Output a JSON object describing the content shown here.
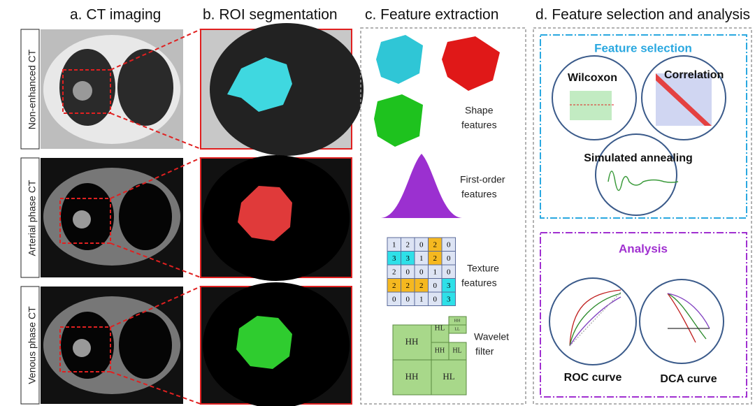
{
  "panels": [
    "a. CT imaging",
    "b. ROI segmentation",
    "c. Feature extraction",
    "d. Feature selection and analysis"
  ],
  "ct_phases": [
    "Non-enhanced CT",
    "Arterial phase CT",
    "Venous phase CT"
  ],
  "features": [
    {
      "lines": [
        "Shape",
        "features"
      ]
    },
    {
      "lines": [
        "First-order",
        "features"
      ]
    },
    {
      "lines": [
        "Texture",
        "features"
      ]
    },
    {
      "lines": [
        "Wavelet",
        "filter"
      ]
    }
  ],
  "texture_matrix": [
    [
      1,
      2,
      0,
      2,
      0
    ],
    [
      3,
      3,
      1,
      2,
      0
    ],
    [
      2,
      0,
      0,
      1,
      0
    ],
    [
      2,
      2,
      2,
      0,
      3
    ],
    [
      0,
      0,
      1,
      0,
      3
    ]
  ],
  "wavelet_labels": [
    "HH",
    "HL",
    "HH",
    "HL",
    "HH",
    "HL",
    "HH",
    "HL",
    "HH",
    "LL"
  ],
  "selection": {
    "title": "Feature selection",
    "methods": [
      "Wilcoxon",
      "Correlation",
      "Simulated annealing"
    ]
  },
  "analysis": {
    "title": "Analysis",
    "curves": [
      "ROC curve",
      "DCA curve"
    ]
  }
}
